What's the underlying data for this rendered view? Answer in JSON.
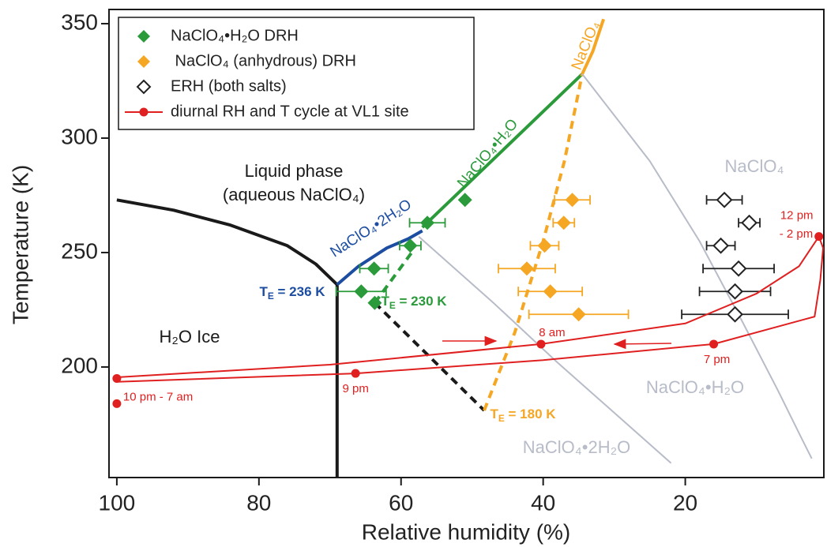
{
  "chart_data": {
    "type": "scatter",
    "xlabel": "Relative humidity (%)",
    "ylabel": "Temperature (K)",
    "xlim": [
      101.1,
      0.5
    ],
    "ylim": [
      151.7,
      356.2
    ],
    "xticks": [
      100,
      80,
      60,
      40,
      20
    ],
    "yticks": [
      200,
      250,
      300,
      350
    ],
    "grid": false,
    "legend": "upper left",
    "series": [
      {
        "name": "NaClO₄•H₂O DRH",
        "color": "#2a9a3a",
        "marker": "diamond",
        "filled": true,
        "x": [
          56.3,
          51,
          58.7,
          63.8,
          65.6,
          63.7
        ],
        "y": [
          263,
          273,
          253,
          243,
          233,
          228
        ],
        "xerr": [
          2.5,
          null,
          1.5,
          2,
          3.5,
          null
        ]
      },
      {
        "name": " NaClO₄ (anhydrous) DRH",
        "color": "#f5a623",
        "marker": "diamond",
        "filled": true,
        "x": [
          35.9,
          37.1,
          39.8,
          42.3,
          39,
          35
        ],
        "y": [
          273,
          263,
          253,
          243,
          233,
          223
        ],
        "xerr": [
          2.5,
          1.5,
          2,
          4,
          4.5,
          7
        ]
      },
      {
        "name": "ERH (both salts)",
        "color": "#222222",
        "marker": "diamond",
        "filled": false,
        "x": [
          14.5,
          11,
          15,
          12.5,
          13,
          13
        ],
        "y": [
          273,
          263,
          253,
          243,
          233,
          223
        ],
        "xerr": [
          2.5,
          1.5,
          2,
          5,
          5,
          7.5
        ]
      },
      {
        "name": "diurnal RH and T cycle at VL1 site",
        "color": "#e02020",
        "marker": "circle",
        "filled": true,
        "x": [
          100,
          100,
          66.4,
          40.3,
          16,
          1.2
        ],
        "y": [
          195,
          184,
          197.2,
          210,
          210,
          257
        ],
        "point_labels": [
          null,
          "10 pm - 7 am",
          "9 pm",
          "8 am",
          "7 pm",
          "12 pm"
        ],
        "cycle": {
          "x": [
            100,
            70,
            40.3,
            20,
            10,
            4,
            1.2,
            0.6,
            1,
            1.8,
            16,
            40,
            66.4,
            100
          ],
          "y": [
            195.5,
            201,
            210,
            219,
            232,
            244,
            257,
            252,
            238,
            222,
            210,
            203,
            197.2,
            193.5
          ]
        }
      }
    ],
    "curves": [
      {
        "color": "#1a1a1a",
        "dashed": false,
        "x": [
          100,
          92,
          84,
          76,
          72,
          69
        ],
        "y": [
          273,
          268.5,
          262,
          253,
          245,
          236
        ]
      },
      {
        "color": "#1a1a1a",
        "dashed": false,
        "x": [
          69,
          69
        ],
        "y": [
          236,
          152
        ]
      },
      {
        "color": "#1a1a1a",
        "dashed": true,
        "x": [
          63.7,
          48.3
        ],
        "y": [
          228,
          181
        ]
      },
      {
        "color": "#1c4da1",
        "dashed": false,
        "x": [
          69,
          66,
          62,
          59,
          57
        ],
        "y": [
          236,
          244,
          252,
          256,
          259.5
        ]
      },
      {
        "color": "#2a9a3a",
        "dashed": false,
        "x": [
          57,
          34.5
        ],
        "y": [
          261,
          328
        ]
      },
      {
        "color": "#2a9a3a",
        "dashed": true,
        "x": [
          63.7,
          58.5
        ],
        "y": [
          228,
          250
        ]
      },
      {
        "color": "#f5a623",
        "dashed": true,
        "x": [
          48.3,
          44,
          40,
          37,
          34.5
        ],
        "y": [
          181,
          215,
          255,
          290,
          328
        ]
      },
      {
        "color": "#f5a623",
        "dashed": false,
        "x": [
          34.5,
          33,
          31.5
        ],
        "y": [
          328,
          338,
          352
        ]
      },
      {
        "color": "#b7bcc8",
        "dashed": false,
        "x": [
          34.5,
          25,
          18,
          12,
          7,
          3.5,
          2.2
        ],
        "y": [
          328,
          290,
          255,
          220,
          190,
          168,
          160
        ]
      },
      {
        "color": "#b7bcc8",
        "dashed": false,
        "x": [
          57.5,
          47,
          38,
          30,
          22
        ],
        "y": [
          257,
          228,
          202,
          180,
          158
        ]
      }
    ],
    "annotations": [
      {
        "text": "Liquid phase",
        "color": "#1a1a1a"
      },
      {
        "text": "(aqueous NaClO₄)",
        "color": "#1a1a1a"
      },
      {
        "text": "H₂O Ice",
        "color": "#1a1a1a"
      },
      {
        "parts": [
          "T",
          "E",
          " = 236 K"
        ],
        "color": "#1c4da1",
        "bold": true
      },
      {
        "parts": [
          "T",
          "E",
          " = 230 K"
        ],
        "color": "#2a9a3a",
        "bold": true
      },
      {
        "parts": [
          "T",
          "E",
          " = 180 K"
        ],
        "color": "#f5a623",
        "bold": true
      },
      {
        "text": "NaClO₄•H₂O",
        "color": "#2a9a3a"
      },
      {
        "text": "NaClO₄•2H₂O",
        "color": "#1c4da1"
      },
      {
        "text": "NaClO₄",
        "color": "#f5a623"
      },
      {
        "text": "NaClO₄",
        "color": "#b7bcc8"
      },
      {
        "text": "NaClO₄•H₂O",
        "color": "#b7bcc8"
      },
      {
        "text": "NaClO₄•2H₂O",
        "color": "#b7bcc8"
      },
      {
        "text": "- 2 pm",
        "color": "#e02020"
      }
    ]
  }
}
